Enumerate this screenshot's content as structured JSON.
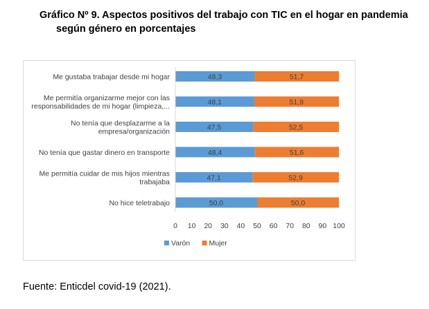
{
  "title_line1": "Gráfico Nº 9. Aspectos positivos del trabajo con TIC en el hogar en pandemia",
  "title_line2": "según género en porcentajes",
  "source": "Fuente: Enticdel covid-19 (2021).",
  "chart_data": {
    "type": "bar",
    "orientation": "horizontal",
    "stacked": true,
    "categories": [
      [
        "Me gustaba trabajar desde mi hogar"
      ],
      [
        "Me permitía organizarme mejor con las",
        "responsabilidades de mi hogar (limpieza,..."
      ],
      [
        "No tenía que desplazarme a la",
        "empresa/organización"
      ],
      [
        "No tenía que gastar dinero en transporte"
      ],
      [
        "Me permitía cuidar de mis hijos mientras",
        "trabajaba"
      ],
      [
        "No hice teletrabajo"
      ]
    ],
    "series": [
      {
        "name": "Varón",
        "color": "#5B9BD5",
        "values": [
          48.3,
          48.1,
          47.5,
          48.4,
          47.1,
          50.0
        ],
        "labels": [
          "48,3",
          "48,1",
          "47,5",
          "48,4",
          "47,1",
          "50,0"
        ]
      },
      {
        "name": "Mujer",
        "color": "#ED7D31",
        "values": [
          51.7,
          51.9,
          52.5,
          51.6,
          52.9,
          50.0
        ],
        "labels": [
          "51,7",
          "51,9",
          "52,5",
          "51,6",
          "52,9",
          "50,0"
        ]
      }
    ],
    "xlim": [
      0,
      100
    ],
    "xticks": [
      "0",
      "10",
      "20",
      "30",
      "40",
      "50",
      "60",
      "70",
      "80",
      "90",
      "100"
    ],
    "grid": false,
    "legend_position": "bottom-left"
  }
}
